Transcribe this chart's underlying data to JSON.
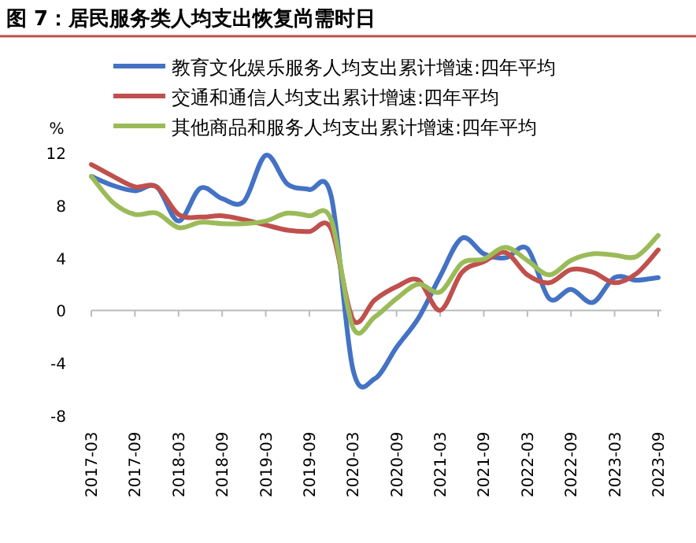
{
  "chart_data": {
    "type": "line",
    "title": "图 7：居民服务类人均支出恢复尚需时日",
    "ylabel": "%",
    "categories": [
      "2017-03",
      null,
      "2017-09",
      null,
      "2018-03",
      null,
      "2018-09",
      null,
      "2019-03",
      null,
      "2019-09",
      null,
      "2020-03",
      null,
      "2020-09",
      null,
      "2021-03",
      null,
      "2021-09",
      null,
      "2022-03",
      null,
      "2022-09",
      null,
      "2023-03",
      null,
      "2023-09"
    ],
    "series": [
      {
        "name": "教育文化娱乐服务人均支出累计增速:四年平均",
        "color": "#4472c4",
        "values": [
          10.2,
          9.5,
          9.1,
          9.4,
          6.8,
          9.3,
          8.5,
          8.3,
          11.8,
          9.6,
          9.2,
          8.7,
          -4.5,
          -5.2,
          -2.8,
          -0.6,
          2.6,
          5.5,
          4.3,
          4.0,
          4.7,
          0.9,
          1.6,
          0.6,
          2.5,
          2.3,
          2.5
        ]
      },
      {
        "name": "交通和通信人均支出累计增速:四年平均",
        "color": "#c0504d",
        "values": [
          11.1,
          10.2,
          9.4,
          9.4,
          7.3,
          7.1,
          7.2,
          6.9,
          6.5,
          6.1,
          6.0,
          6.2,
          -0.7,
          0.8,
          1.8,
          2.3,
          0.0,
          2.9,
          3.7,
          4.4,
          2.7,
          2.1,
          3.1,
          2.9,
          2.1,
          2.8,
          4.6
        ]
      },
      {
        "name": "其他商品和服务人均支出累计增速:四年平均",
        "color": "#9bbb59",
        "values": [
          10.2,
          8.2,
          7.3,
          7.4,
          6.3,
          6.7,
          6.6,
          6.6,
          6.8,
          7.4,
          7.2,
          6.9,
          -1.3,
          -0.5,
          0.9,
          2.0,
          1.4,
          3.6,
          3.9,
          4.8,
          3.8,
          2.7,
          3.8,
          4.3,
          4.2,
          4.1,
          5.7
        ]
      }
    ],
    "ylim": [
      -8,
      12
    ],
    "yticks": [
      -8,
      -4,
      0,
      4,
      8,
      12
    ],
    "legend": "top",
    "marker": "none",
    "line_style": "solid"
  }
}
